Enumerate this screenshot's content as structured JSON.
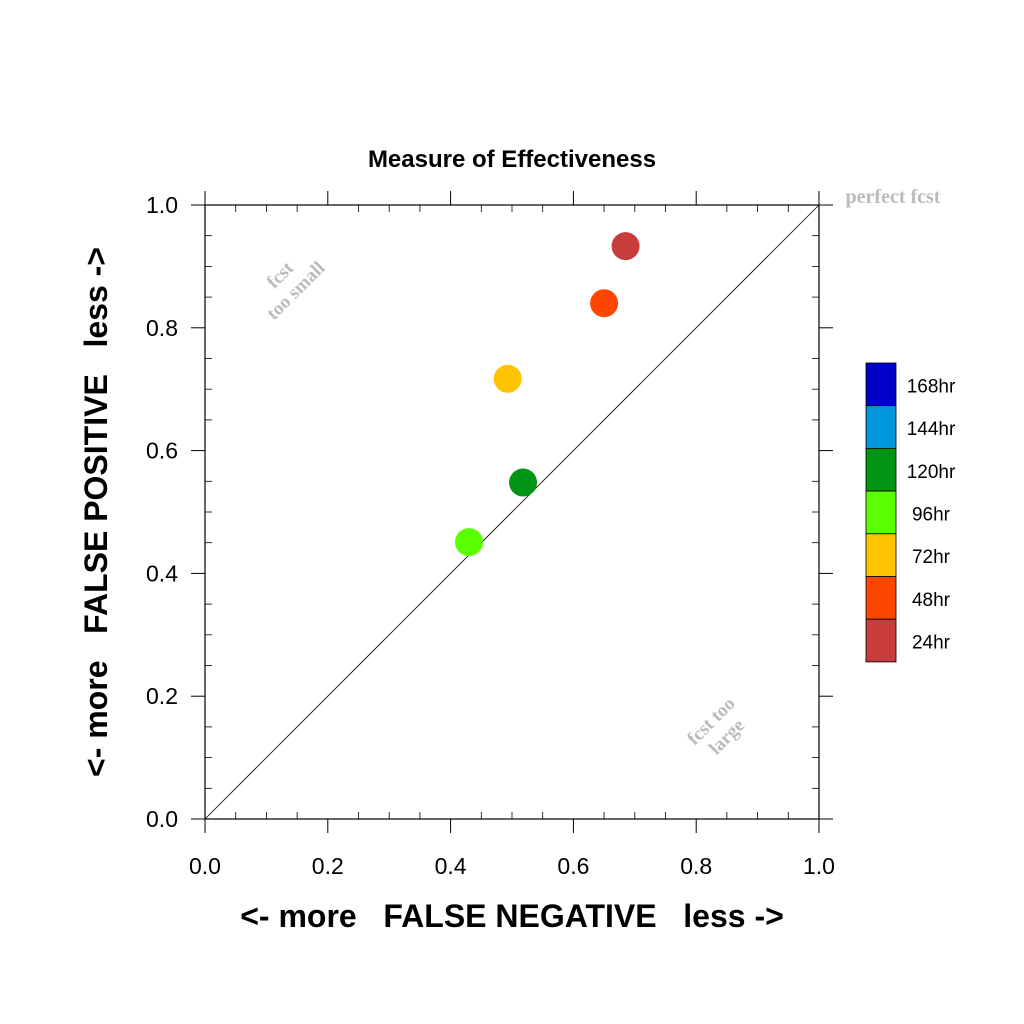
{
  "chart_data": {
    "type": "scatter",
    "title": "Measure of Effectiveness",
    "xlabel": "<- more   FALSE NEGATIVE   less ->",
    "ylabel": "<- more   FALSE POSITIVE   less ->",
    "xlim": [
      0.0,
      1.0
    ],
    "ylim": [
      0.0,
      1.0
    ],
    "x_ticks": [
      "0.0",
      "0.2",
      "0.4",
      "0.6",
      "0.8",
      "1.0"
    ],
    "y_ticks": [
      "0.0",
      "0.2",
      "0.4",
      "0.6",
      "0.8",
      "1.0"
    ],
    "grid": false,
    "reference_line": {
      "label": "perfect fcst",
      "from": [
        0.0,
        0.0
      ],
      "to": [
        1.0,
        1.0
      ]
    },
    "annotations": {
      "upper_left": [
        "fcst",
        "too small"
      ],
      "lower_right": [
        "fcst too",
        "large"
      ]
    },
    "legend_position": "right",
    "legend": [
      {
        "label": "168hr",
        "color": "#0000c8"
      },
      {
        "label": "144hr",
        "color": "#0096dc"
      },
      {
        "label": "120hr",
        "color": "#009614"
      },
      {
        "label": "96hr",
        "color": "#5aff00"
      },
      {
        "label": "72hr",
        "color": "#ffc300"
      },
      {
        "label": "48hr",
        "color": "#ff4600"
      },
      {
        "label": "24hr",
        "color": "#c83c3c"
      }
    ],
    "points": [
      {
        "label": "24hr",
        "x": 0.685,
        "y": 0.933,
        "color": "#c83c3c"
      },
      {
        "label": "48hr",
        "x": 0.65,
        "y": 0.84,
        "color": "#ff4600"
      },
      {
        "label": "72hr",
        "x": 0.493,
        "y": 0.717,
        "color": "#ffc300"
      },
      {
        "label": "120hr",
        "x": 0.518,
        "y": 0.548,
        "color": "#009614"
      },
      {
        "label": "96hr",
        "x": 0.43,
        "y": 0.451,
        "color": "#5aff00"
      }
    ]
  }
}
